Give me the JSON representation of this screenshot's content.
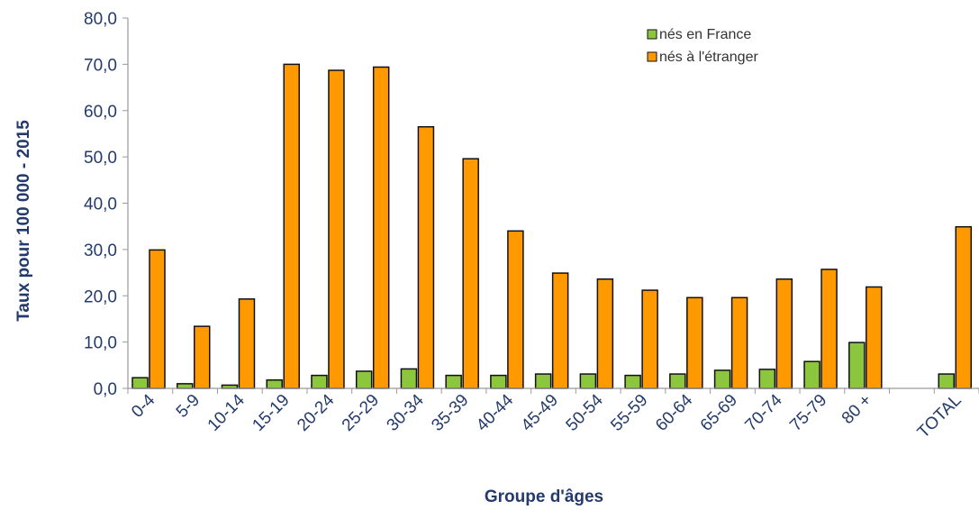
{
  "chart_data": {
    "type": "bar",
    "title": "",
    "xlabel": "Groupe d'âges",
    "ylabel": "Taux pour 100 000 - 2015",
    "ylim": [
      0,
      80
    ],
    "ytick_step": 10,
    "ytick_labels": [
      "0,0",
      "10,0",
      "20,0",
      "30,0",
      "40,0",
      "50,0",
      "60,0",
      "70,0",
      "80,0"
    ],
    "grid": false,
    "legend_position": "top-right",
    "categories": [
      "0-4",
      "5-9",
      "10-14",
      "15-19",
      "20-24",
      "25-29",
      "30-34",
      "35-39",
      "40-44",
      "45-49",
      "50-54",
      "55-59",
      "60-64",
      "65-69",
      "70-74",
      "75-79",
      "80 +",
      "",
      "TOTAL"
    ],
    "series": [
      {
        "name": "nés en France",
        "color": "#8cc63f",
        "values": [
          2.3,
          1.0,
          0.7,
          1.8,
          2.8,
          3.7,
          4.2,
          2.8,
          2.8,
          3.1,
          3.1,
          2.8,
          3.1,
          3.9,
          4.1,
          5.8,
          9.9,
          null,
          3.1
        ]
      },
      {
        "name": "nés à l'étranger",
        "color": "#ff9900",
        "values": [
          29.9,
          13.4,
          19.3,
          70.0,
          68.7,
          69.4,
          56.5,
          49.6,
          34.0,
          24.9,
          23.6,
          21.2,
          19.6,
          19.6,
          23.6,
          25.7,
          21.9,
          null,
          34.9
        ]
      }
    ]
  }
}
